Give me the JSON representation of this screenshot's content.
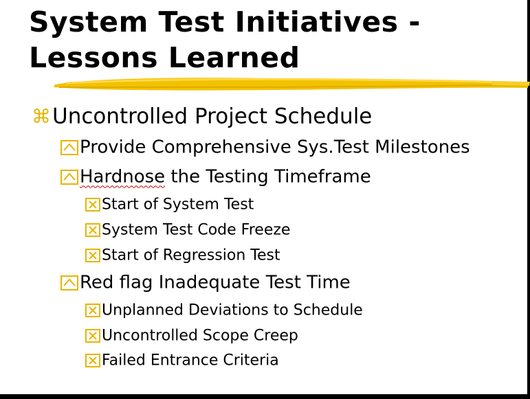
{
  "slide": {
    "title_line1": "System Test Initiatives -",
    "title_line2": "Lessons Learned",
    "accent_color": "#f2c200",
    "bullets": [
      {
        "level": 1,
        "text": "Uncontrolled Project Schedule"
      },
      {
        "level": 2,
        "text": "Provide Comprehensive Sys.Test Milestones"
      },
      {
        "level": 2,
        "text_part1": "Hardnose",
        "text_part2": " the Testing Timeframe"
      },
      {
        "level": 3,
        "text": "Start of System Test"
      },
      {
        "level": 3,
        "text": "System Test Code Freeze"
      },
      {
        "level": 3,
        "text": "Start of Regression Test"
      },
      {
        "level": 2,
        "text": "Red flag Inadequate Test Time"
      },
      {
        "level": 3,
        "text": "Unplanned Deviations to Schedule"
      },
      {
        "level": 3,
        "text": "Uncontrolled Scope Creep"
      },
      {
        "level": 3,
        "text": "Failed Entrance Criteria"
      }
    ],
    "bullet_icons": {
      "level1": "command-key-icon",
      "level2": "caret-box-icon",
      "level3": "x-box-icon"
    }
  }
}
